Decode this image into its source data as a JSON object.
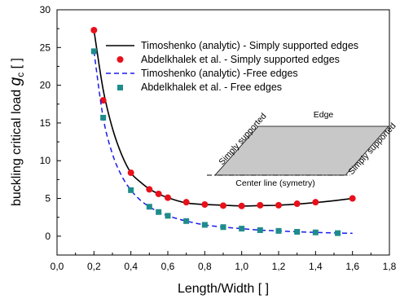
{
  "chart_data": {
    "type": "line",
    "title": "",
    "xlabel": "Length/Width [ ]",
    "ylabel_prefix": "buckling critical load ",
    "ylabel_symbol": "g",
    "ylabel_subscript": "c",
    "ylabel_suffix": " [ ]",
    "xlim": [
      0.0,
      1.8
    ],
    "ylim": [
      -2.5,
      30
    ],
    "xticks": [
      0.0,
      0.2,
      0.4,
      0.6,
      0.8,
      1.0,
      1.2,
      1.4,
      1.6,
      1.8
    ],
    "xtick_labels": [
      "0,0",
      "0,2",
      "0,4",
      "0,6",
      "0,8",
      "1,0",
      "1,2",
      "1,4",
      "1,6",
      "1,8"
    ],
    "yticks": [
      0,
      5,
      10,
      15,
      20,
      25,
      30
    ],
    "ytick_labels": [
      "0",
      "5",
      "10",
      "15",
      "20",
      "25",
      "30"
    ],
    "grid": false,
    "legend_position": "top-right",
    "series": [
      {
        "name": "Timoshenko (analytic) - Simply supported edges",
        "kind": "line",
        "style": "solid",
        "color": "#000000",
        "x": [
          0.2,
          0.25,
          0.3,
          0.35,
          0.4,
          0.45,
          0.5,
          0.55,
          0.6,
          0.7,
          0.8,
          0.9,
          1.0,
          1.1,
          1.2,
          1.3,
          1.4,
          1.5,
          1.6
        ],
        "y": [
          27.3,
          19.4,
          14.3,
          10.8,
          8.4,
          7.2,
          6.25,
          5.6,
          5.1,
          4.4,
          4.2,
          4.1,
          4.0,
          4.05,
          4.1,
          4.25,
          4.45,
          4.7,
          5.0
        ]
      },
      {
        "name": "Abdelkhalek et al. - Simply supported edges",
        "kind": "scatter",
        "marker": "circle",
        "color": "#e8101a",
        "x": [
          0.2,
          0.25,
          0.4,
          0.5,
          0.55,
          0.6,
          0.7,
          0.8,
          0.9,
          1.0,
          1.1,
          1.2,
          1.3,
          1.4,
          1.6
        ],
        "y": [
          27.3,
          18.0,
          8.4,
          6.2,
          5.6,
          5.1,
          4.5,
          4.2,
          4.05,
          4.0,
          4.1,
          4.1,
          4.3,
          4.5,
          5.0
        ]
      },
      {
        "name": "Timoshenko (analytic)  -Free edges",
        "kind": "line",
        "style": "dashed",
        "color": "#1a1aee",
        "x": [
          0.2,
          0.25,
          0.3,
          0.35,
          0.4,
          0.45,
          0.5,
          0.55,
          0.6,
          0.7,
          0.8,
          0.9,
          1.0,
          1.1,
          1.2,
          1.3,
          1.4,
          1.5,
          1.6
        ],
        "y": [
          24.5,
          15.7,
          10.9,
          8.0,
          6.1,
          4.8,
          3.9,
          3.2,
          2.7,
          2.0,
          1.5,
          1.2,
          1.0,
          0.8,
          0.7,
          0.58,
          0.5,
          0.43,
          0.38
        ]
      },
      {
        "name": "Abdelkhalek et al. - Free edges",
        "kind": "scatter",
        "marker": "square",
        "color": "#1f8c8c",
        "x": [
          0.2,
          0.25,
          0.4,
          0.5,
          0.55,
          0.6,
          0.7,
          0.8,
          0.9,
          1.0,
          1.1,
          1.2,
          1.3,
          1.4,
          1.52
        ],
        "y": [
          24.5,
          15.7,
          6.1,
          3.9,
          3.2,
          2.7,
          2.0,
          1.5,
          1.2,
          1.0,
          0.8,
          0.7,
          0.58,
          0.5,
          0.4
        ]
      }
    ],
    "inset": {
      "edge_label": "Edge",
      "left_label": "Simply supported",
      "right_label": "Simply supported",
      "bottom_label": "Center line (symetry)",
      "plate_color": "#c8c8c8"
    }
  }
}
